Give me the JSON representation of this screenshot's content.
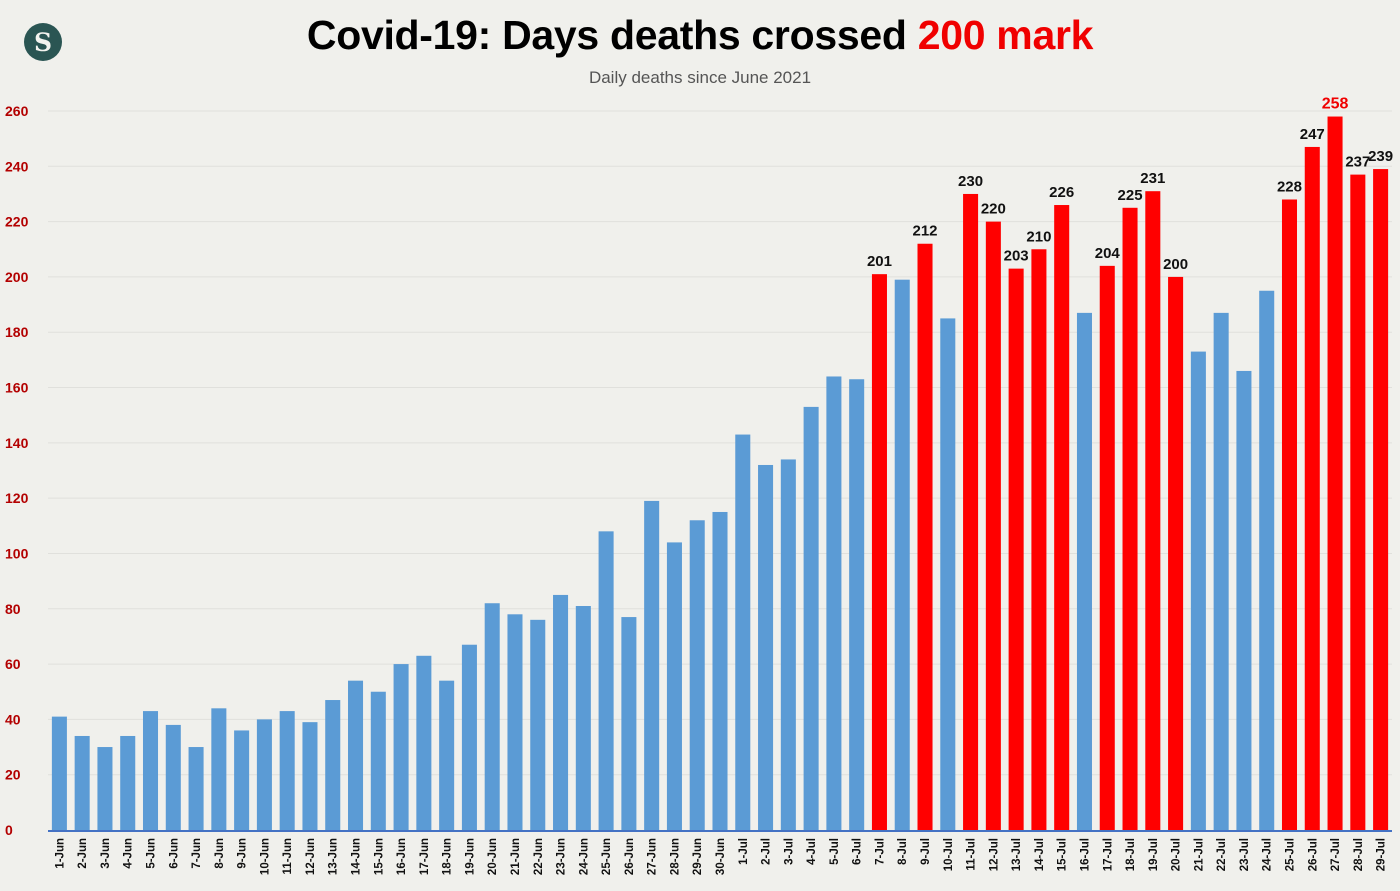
{
  "header": {
    "logo_text": "S",
    "title_main": "Covid-19: Days deaths crossed ",
    "title_highlight": "200 mark",
    "subtitle": "Daily deaths since June 2021"
  },
  "colors": {
    "below_threshold": "#5b9bd5",
    "above_threshold": "#ff0000",
    "axis_tick_labels": "#b30000",
    "title_highlight": "#f00000",
    "background": "#f0f0ec"
  },
  "chart_data": {
    "type": "bar",
    "title": "Covid-19: Days deaths crossed 200 mark",
    "subtitle": "Daily deaths since June 2021",
    "xlabel": "",
    "ylabel": "",
    "ylim": [
      0,
      260
    ],
    "yticks": [
      0,
      20,
      40,
      60,
      80,
      100,
      120,
      140,
      160,
      180,
      200,
      220,
      240,
      260
    ],
    "grid": true,
    "legend": "none",
    "threshold": 200,
    "threshold_rule": "bars with value >= 200 are red and labeled; the max value label is red",
    "categories": [
      "1-Jun",
      "2-Jun",
      "3-Jun",
      "4-Jun",
      "5-Jun",
      "6-Jun",
      "7-Jun",
      "8-Jun",
      "9-Jun",
      "10-Jun",
      "11-Jun",
      "12-Jun",
      "13-Jun",
      "14-Jun",
      "15-Jun",
      "16-Jun",
      "17-Jun",
      "18-Jun",
      "19-Jun",
      "20-Jun",
      "21-Jun",
      "22-Jun",
      "23-Jun",
      "24-Jun",
      "25-Jun",
      "26-Jun",
      "27-Jun",
      "28-Jun",
      "29-Jun",
      "30-Jun",
      "1-Jul",
      "2-Jul",
      "3-Jul",
      "4-Jul",
      "5-Jul",
      "6-Jul",
      "7-Jul",
      "8-Jul",
      "9-Jul",
      "10-Jul",
      "11-Jul",
      "12-Jul",
      "13-Jul",
      "14-Jul",
      "15-Jul",
      "16-Jul",
      "17-Jul",
      "18-Jul",
      "19-Jul",
      "20-Jul",
      "21-Jul",
      "22-Jul",
      "23-Jul",
      "24-Jul",
      "25-Jul",
      "26-Jul",
      "27-Jul",
      "28-Jul",
      "29-Jul"
    ],
    "values": [
      41,
      34,
      30,
      34,
      43,
      38,
      30,
      44,
      36,
      40,
      43,
      39,
      47,
      54,
      50,
      60,
      63,
      54,
      67,
      82,
      78,
      76,
      85,
      81,
      108,
      77,
      119,
      104,
      112,
      115,
      143,
      132,
      134,
      153,
      164,
      163,
      201,
      199,
      212,
      185,
      230,
      220,
      203,
      210,
      226,
      187,
      204,
      225,
      231,
      200,
      173,
      187,
      166,
      195,
      228,
      247,
      258,
      237,
      239
    ]
  }
}
